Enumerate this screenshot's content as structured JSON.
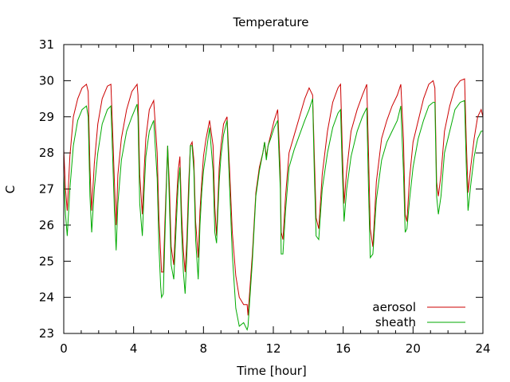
{
  "chart_data": {
    "type": "line",
    "title": "Temperature",
    "xlabel": "Time [hour]",
    "ylabel": "C",
    "xlim": [
      0,
      24
    ],
    "ylim": [
      23,
      31
    ],
    "xticks": [
      0,
      4,
      8,
      12,
      16,
      20,
      24
    ],
    "yticks": [
      23,
      24,
      25,
      26,
      27,
      28,
      29,
      30,
      31
    ],
    "grid": false,
    "legend_position": "bottom-right",
    "series": [
      {
        "name": "aerosol",
        "color": "#cc0000",
        "x": [
          0,
          0.1,
          0.2,
          0.35,
          0.55,
          0.8,
          1.05,
          1.3,
          1.4,
          1.5,
          1.6,
          1.75,
          1.95,
          2.2,
          2.5,
          2.7,
          2.8,
          2.9,
          3.0,
          3.1,
          3.3,
          3.6,
          3.9,
          4.2,
          4.25,
          4.35,
          4.5,
          4.6,
          4.7,
          4.9,
          5.15,
          5.35,
          5.45,
          5.55,
          5.6,
          5.7,
          5.8,
          5.95,
          6.05,
          6.15,
          6.3,
          6.45,
          6.55,
          6.65,
          6.75,
          6.85,
          6.95,
          7.05,
          7.15,
          7.25,
          7.35,
          7.45,
          7.55,
          7.7,
          7.8,
          7.9,
          8.0,
          8.15,
          8.35,
          8.55,
          8.65,
          8.75,
          8.9,
          9.0,
          9.15,
          9.35,
          9.5,
          9.65,
          9.85,
          10.05,
          10.3,
          10.5,
          10.55,
          10.8,
          11.0,
          11.2,
          11.4,
          11.5,
          11.6,
          11.7,
          11.85,
          12.05,
          12.25,
          12.4,
          12.45,
          12.55,
          12.7,
          12.9,
          13.2,
          13.5,
          13.8,
          14.05,
          14.25,
          14.35,
          14.45,
          14.6,
          14.8,
          15.1,
          15.4,
          15.7,
          15.85,
          15.95,
          16.05,
          16.2,
          16.45,
          16.8,
          17.1,
          17.35,
          17.45,
          17.55,
          17.7,
          17.9,
          18.2,
          18.5,
          18.8,
          19.1,
          19.3,
          19.45,
          19.55,
          19.65,
          19.8,
          20.0,
          20.3,
          20.6,
          20.9,
          21.15,
          21.25,
          21.35,
          21.45,
          21.6,
          21.8,
          22.1,
          22.4,
          22.7,
          22.95,
          23.05,
          23.15,
          23.3,
          23.5,
          23.7,
          23.9,
          24.0
        ],
        "y": [
          28.1,
          27.0,
          26.4,
          27.9,
          29.0,
          29.5,
          29.8,
          29.9,
          29.7,
          27.6,
          26.4,
          27.7,
          28.8,
          29.5,
          29.85,
          29.9,
          28.6,
          27.2,
          26.0,
          27.4,
          28.4,
          29.2,
          29.7,
          29.9,
          29.6,
          27.4,
          26.3,
          27.5,
          28.4,
          29.2,
          29.45,
          28.0,
          26.2,
          25.2,
          24.7,
          24.7,
          26.2,
          28.2,
          27.1,
          25.4,
          24.9,
          26.6,
          27.5,
          27.9,
          26.3,
          25.3,
          24.7,
          25.6,
          27.1,
          28.2,
          28.3,
          27.8,
          26.1,
          25.1,
          26.4,
          27.2,
          27.9,
          28.4,
          28.9,
          28.2,
          26.5,
          25.7,
          27.6,
          28.2,
          28.8,
          29.0,
          27.5,
          25.8,
          24.6,
          24.0,
          23.8,
          23.8,
          23.5,
          25.2,
          26.9,
          27.6,
          28.0,
          28.3,
          27.9,
          28.2,
          28.5,
          28.9,
          29.2,
          27.5,
          25.8,
          25.6,
          26.8,
          28.0,
          28.5,
          29.0,
          29.5,
          29.8,
          29.6,
          27.9,
          26.2,
          25.9,
          27.4,
          28.6,
          29.4,
          29.8,
          29.9,
          28.1,
          26.6,
          27.5,
          28.6,
          29.2,
          29.6,
          29.9,
          28.0,
          25.9,
          25.4,
          27.2,
          28.4,
          28.9,
          29.3,
          29.6,
          29.9,
          28.4,
          26.3,
          26.1,
          27.3,
          28.3,
          28.9,
          29.5,
          29.9,
          30.0,
          29.8,
          27.2,
          26.8,
          27.4,
          28.6,
          29.3,
          29.8,
          30.0,
          30.05,
          28.3,
          26.9,
          27.6,
          28.4,
          29.0,
          29.2,
          29.0
        ]
      },
      {
        "name": "sheath",
        "color": "#00aa00",
        "x": [
          0,
          0.1,
          0.2,
          0.35,
          0.55,
          0.8,
          1.05,
          1.3,
          1.4,
          1.5,
          1.6,
          1.75,
          1.95,
          2.2,
          2.5,
          2.7,
          2.8,
          2.9,
          3.0,
          3.1,
          3.3,
          3.6,
          3.9,
          4.2,
          4.25,
          4.35,
          4.5,
          4.6,
          4.7,
          4.9,
          5.15,
          5.35,
          5.45,
          5.55,
          5.6,
          5.7,
          5.8,
          5.95,
          6.05,
          6.15,
          6.3,
          6.45,
          6.55,
          6.65,
          6.75,
          6.85,
          6.95,
          7.05,
          7.15,
          7.25,
          7.35,
          7.45,
          7.55,
          7.7,
          7.8,
          7.9,
          8.0,
          8.15,
          8.35,
          8.55,
          8.65,
          8.75,
          8.9,
          9.0,
          9.15,
          9.35,
          9.5,
          9.65,
          9.85,
          10.05,
          10.3,
          10.5,
          10.55,
          10.8,
          11.0,
          11.2,
          11.4,
          11.5,
          11.6,
          11.7,
          11.85,
          12.05,
          12.25,
          12.4,
          12.45,
          12.55,
          12.7,
          12.9,
          13.2,
          13.5,
          13.8,
          14.05,
          14.25,
          14.35,
          14.45,
          14.6,
          14.8,
          15.1,
          15.4,
          15.7,
          15.85,
          15.95,
          16.05,
          16.2,
          16.45,
          16.8,
          17.1,
          17.35,
          17.45,
          17.55,
          17.7,
          17.9,
          18.2,
          18.5,
          18.8,
          19.1,
          19.3,
          19.45,
          19.55,
          19.65,
          19.8,
          20.0,
          20.3,
          20.6,
          20.9,
          21.15,
          21.25,
          21.35,
          21.45,
          21.6,
          21.8,
          22.1,
          22.4,
          22.7,
          22.95,
          23.05,
          23.15,
          23.3,
          23.5,
          23.7,
          23.9,
          24.0
        ],
        "y": [
          27.4,
          26.3,
          25.7,
          27.0,
          28.2,
          28.9,
          29.2,
          29.3,
          29.0,
          26.8,
          25.8,
          27.0,
          28.0,
          28.8,
          29.2,
          29.3,
          27.9,
          26.4,
          25.3,
          26.6,
          27.8,
          28.6,
          29.0,
          29.35,
          29.0,
          26.6,
          25.7,
          26.9,
          27.9,
          28.6,
          28.9,
          27.3,
          25.4,
          24.3,
          24.0,
          24.1,
          25.8,
          28.2,
          26.6,
          24.9,
          24.5,
          26.1,
          27.1,
          27.6,
          25.8,
          24.7,
          24.1,
          25.2,
          26.7,
          28.2,
          28.2,
          27.5,
          25.6,
          24.5,
          26.0,
          26.9,
          27.5,
          28.0,
          28.7,
          27.5,
          25.8,
          25.5,
          27.2,
          27.9,
          28.5,
          28.9,
          27.0,
          25.2,
          23.7,
          23.2,
          23.3,
          23.1,
          23.2,
          25.0,
          26.8,
          27.5,
          28.0,
          28.3,
          27.8,
          28.2,
          28.4,
          28.7,
          28.9,
          27.0,
          25.2,
          25.2,
          26.4,
          27.6,
          28.1,
          28.5,
          28.9,
          29.2,
          29.5,
          27.4,
          25.7,
          25.6,
          27.0,
          28.0,
          28.7,
          29.1,
          29.2,
          27.5,
          26.1,
          27.0,
          27.9,
          28.6,
          29.0,
          29.25,
          27.0,
          25.1,
          25.2,
          26.7,
          27.8,
          28.3,
          28.6,
          28.9,
          29.3,
          27.5,
          25.8,
          25.9,
          26.7,
          27.6,
          28.4,
          28.9,
          29.3,
          29.4,
          29.4,
          26.8,
          26.3,
          26.8,
          28.0,
          28.6,
          29.2,
          29.4,
          29.45,
          27.6,
          26.4,
          27.1,
          27.9,
          28.4,
          28.6,
          28.6
        ]
      }
    ]
  }
}
